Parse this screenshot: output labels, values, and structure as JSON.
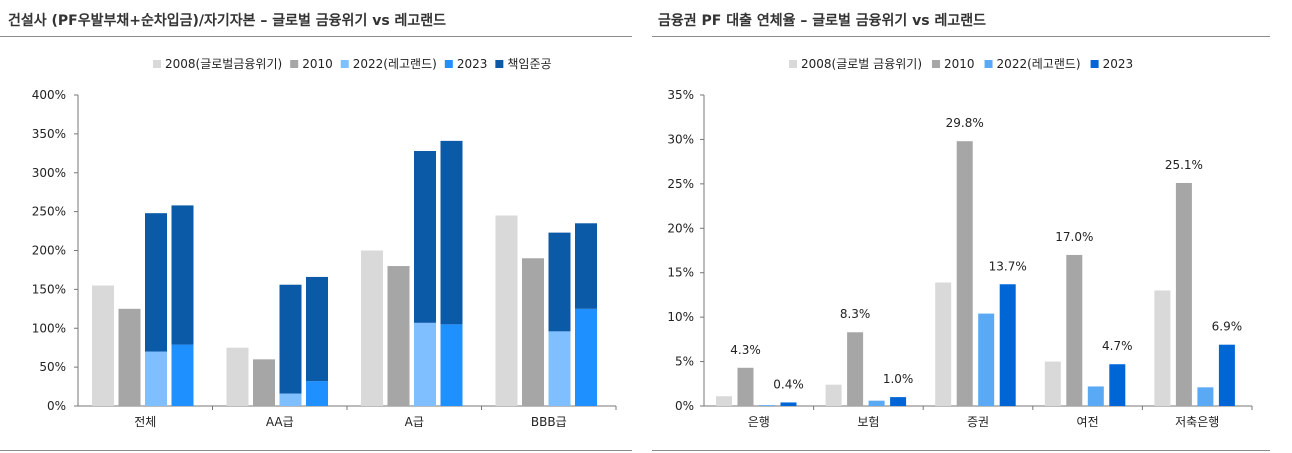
{
  "left_panel": {
    "title": "건설사 (PF우발부채+순차입금)/자기자본 – 글로벌 금융위기 vs 레고랜드"
  },
  "right_panel": {
    "title": "금융권 PF 대출 연체율 – 글로벌 금융위기 vs 레고랜드"
  },
  "chart_data": [
    {
      "type": "bar",
      "title": "건설사 (PF우발부채+순차입금)/자기자본 – 글로벌 금융위기 vs 레고랜드",
      "categories": [
        "전체",
        "AA급",
        "A급",
        "BBB급"
      ],
      "series": [
        {
          "name": "2008(글로벌금융위기)",
          "color": "#d9d9d9",
          "values": [
            155,
            75,
            200,
            245
          ]
        },
        {
          "name": "2010",
          "color": "#a6a6a6",
          "values": [
            125,
            60,
            180,
            190
          ]
        },
        {
          "name": "2022(레고랜드)",
          "color": "#7fbfff",
          "values": [
            70,
            16,
            107,
            96
          ],
          "stack_extra_name": "책임준공",
          "stack_extra": [
            178,
            140,
            221,
            127
          ]
        },
        {
          "name": "2023",
          "color": "#1e90ff",
          "values": [
            79,
            32,
            105,
            125
          ],
          "stack_extra_name": "책임준공",
          "stack_extra": [
            179,
            134,
            236,
            110
          ]
        }
      ],
      "stack_legend": {
        "name": "책임준공",
        "color": "#0b5aa8"
      },
      "ylim": [
        0,
        400
      ],
      "yticks": [
        "0%",
        "50%",
        "100%",
        "150%",
        "200%",
        "250%",
        "300%",
        "350%",
        "400%"
      ],
      "legend_position": "top-right",
      "grid": false
    },
    {
      "type": "bar",
      "title": "금융권 PF 대출 연체율 – 글로벌 금융위기 vs 레고랜드",
      "categories": [
        "은행",
        "보험",
        "증권",
        "여전",
        "저축은행"
      ],
      "series": [
        {
          "name": "2008(글로벌 금융위기)",
          "color": "#d9d9d9",
          "values": [
            1.1,
            2.4,
            13.9,
            5.0,
            13.0
          ]
        },
        {
          "name": "2010",
          "color": "#a6a6a6",
          "values": [
            4.3,
            8.3,
            29.8,
            17.0,
            25.1
          ]
        },
        {
          "name": "2022(레고랜드)",
          "color": "#5aa9f5",
          "values": [
            0.1,
            0.6,
            10.4,
            2.2,
            2.1
          ]
        },
        {
          "name": "2023",
          "color": "#0066d6",
          "values": [
            0.4,
            1.0,
            13.7,
            4.7,
            6.9
          ]
        }
      ],
      "data_labels": [
        {
          "series": 1,
          "index": 0,
          "text": "4.3%"
        },
        {
          "series": 3,
          "index": 0,
          "text": "0.4%"
        },
        {
          "series": 1,
          "index": 1,
          "text": "8.3%"
        },
        {
          "series": 3,
          "index": 1,
          "text": "1.0%"
        },
        {
          "series": 1,
          "index": 2,
          "text": "29.8%"
        },
        {
          "series": 3,
          "index": 2,
          "text": "13.7%"
        },
        {
          "series": 1,
          "index": 3,
          "text": "17.0%"
        },
        {
          "series": 3,
          "index": 3,
          "text": "4.7%"
        },
        {
          "series": 1,
          "index": 4,
          "text": "25.1%"
        },
        {
          "series": 3,
          "index": 4,
          "text": "6.9%"
        }
      ],
      "ylim": [
        0,
        35
      ],
      "yticks": [
        "0%",
        "5%",
        "10%",
        "15%",
        "20%",
        "25%",
        "30%",
        "35%"
      ],
      "legend_position": "top-center",
      "grid": false
    }
  ]
}
